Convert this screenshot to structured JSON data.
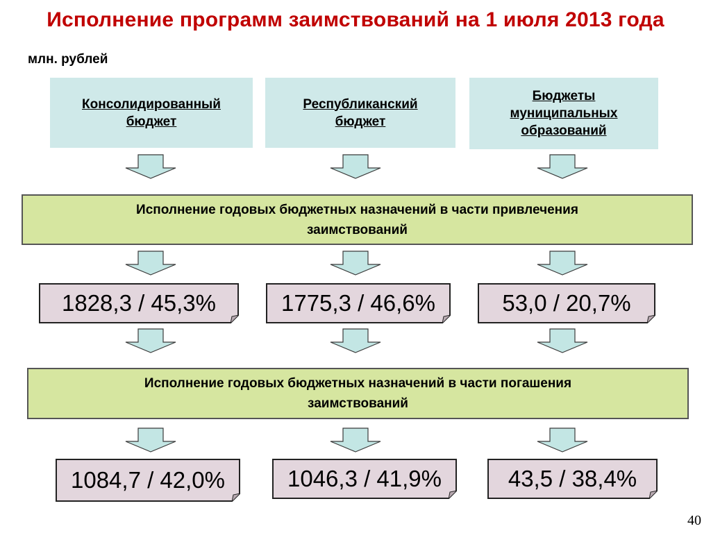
{
  "title": "Исполнение программ заимствований на 1 июля 2013 года",
  "units": "млн. рублей",
  "headers": {
    "consolidated": [
      "Консолидированный",
      "бюджет"
    ],
    "republican": [
      "Республиканский",
      "бюджет"
    ],
    "municipal": [
      "Бюджеты",
      "муниципальных",
      "образований"
    ]
  },
  "borrowing": {
    "label": [
      "Исполнение годовых бюджетных назначений в части привлечения",
      "заимствований"
    ],
    "consolidated": "1828,3 / 45,3%",
    "republican": "1775,3 / 46,6%",
    "municipal": "53,0 / 20,7%"
  },
  "repayment": {
    "label": [
      "Исполнение годовых бюджетных назначений в части погашения",
      "заимствований"
    ],
    "consolidated": "1084,7 / 42,0%",
    "republican": "1046,3 / 41,9%",
    "municipal": "43,5 / 38,4%"
  },
  "page_number": "40",
  "colors": {
    "title": "#c00000",
    "header_fill": "#cfe9e9",
    "band_fill": "#d6e6a0",
    "value_fill": "#e3d6dd",
    "arrow_fill": "#c3e6e4"
  }
}
